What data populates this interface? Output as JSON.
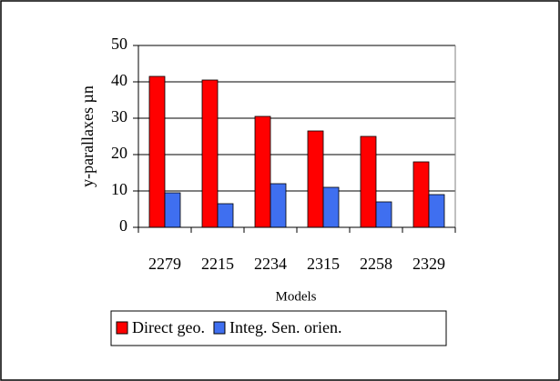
{
  "chart_data": {
    "type": "bar",
    "x_label": "Models",
    "y_label": "y-parallaxes µn",
    "categories": [
      "2279",
      "2215",
      "2234",
      "2315",
      "2258",
      "2329"
    ],
    "series": [
      {
        "name": "Direct geo.",
        "color": "#ff0000",
        "values": [
          41.5,
          40.5,
          30.5,
          26.5,
          25,
          18
        ]
      },
      {
        "name": "Integ. Sen. orien.",
        "color": "#3f6ff0",
        "values": [
          9.5,
          6.5,
          12,
          11,
          7,
          9
        ]
      }
    ],
    "ylim": [
      0,
      50
    ],
    "yticks": [
      0,
      10,
      20,
      30,
      40,
      50
    ],
    "grid": true,
    "legend": "bottom"
  }
}
